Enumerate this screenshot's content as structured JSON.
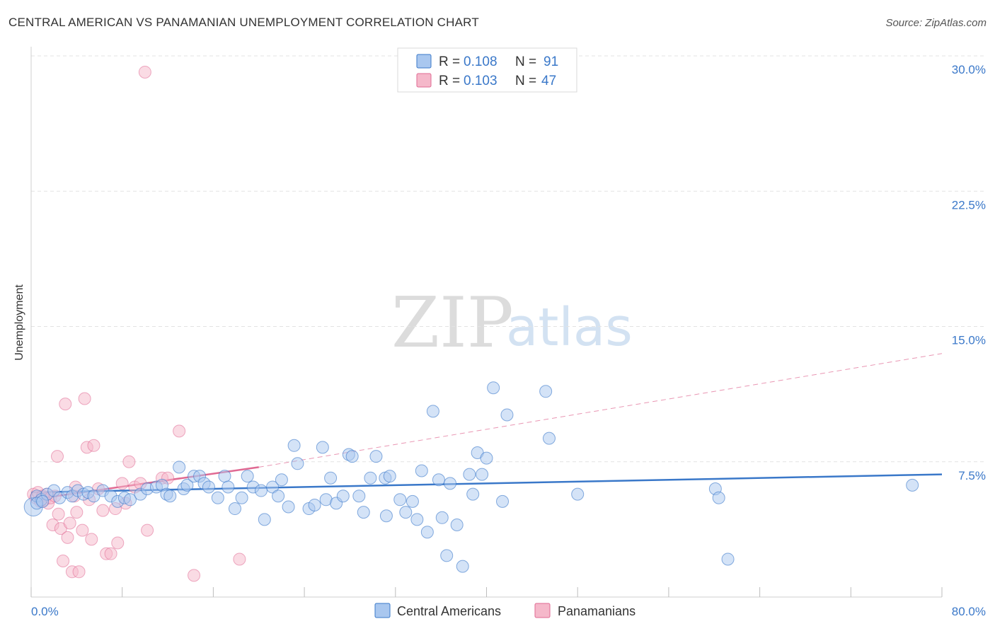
{
  "title": "CENTRAL AMERICAN VS PANAMANIAN UNEMPLOYMENT CORRELATION CHART",
  "source": "Source: ZipAtlas.com",
  "colors": {
    "blue": "#3a78c9",
    "blue_fill": "#a9c7ef",
    "pink": "#e06a93",
    "pink_fill": "#f5b8ca",
    "grid": "#e3e3e3"
  },
  "legend": {
    "r_label": "R =",
    "n_label": "N =",
    "series": [
      {
        "r": "0.108",
        "n": "91"
      },
      {
        "r": "0.103",
        "n": "47"
      }
    ]
  },
  "watermark": {
    "part1": "ZIP",
    "part2": "atlas"
  },
  "chart_data": {
    "type": "scatter",
    "title": "CENTRAL AMERICAN VS PANAMANIAN UNEMPLOYMENT CORRELATION CHART",
    "xlabel": "",
    "ylabel": "Unemployment",
    "xlim": [
      0,
      80
    ],
    "ylim": [
      0,
      30
    ],
    "x_tick_labels": [
      "0.0%",
      "80.0%"
    ],
    "y_ticks": [
      7.5,
      15.0,
      22.5,
      30.0
    ],
    "y_tick_labels": [
      "7.5%",
      "15.0%",
      "22.5%",
      "30.0%"
    ],
    "grid": true,
    "legend_position": "top-center",
    "series": [
      {
        "name": "Central Americans",
        "r": 0.108,
        "n": 91,
        "trend": {
          "x0": 0,
          "y0": 5.8,
          "x1": 80,
          "y1": 6.8,
          "style": "solid"
        },
        "points": [
          [
            0.2,
            5.0
          ],
          [
            0.5,
            5.6
          ],
          [
            0.9,
            5.4
          ],
          [
            1.4,
            5.7
          ],
          [
            2.0,
            5.9
          ],
          [
            2.5,
            5.5
          ],
          [
            3.2,
            5.8
          ],
          [
            3.6,
            5.6
          ],
          [
            4.1,
            5.9
          ],
          [
            4.6,
            5.7
          ],
          [
            5.0,
            5.8
          ],
          [
            5.5,
            5.6
          ],
          [
            6.3,
            5.9
          ],
          [
            7.0,
            5.6
          ],
          [
            7.6,
            5.3
          ],
          [
            8.2,
            5.5
          ],
          [
            8.7,
            5.4
          ],
          [
            9.6,
            5.7
          ],
          [
            10.2,
            6.0
          ],
          [
            11.0,
            6.1
          ],
          [
            11.5,
            6.2
          ],
          [
            11.9,
            5.7
          ],
          [
            12.2,
            5.6
          ],
          [
            13.0,
            7.2
          ],
          [
            13.4,
            6.0
          ],
          [
            13.7,
            6.2
          ],
          [
            14.3,
            6.7
          ],
          [
            14.8,
            6.7
          ],
          [
            15.2,
            6.3
          ],
          [
            15.6,
            6.1
          ],
          [
            16.4,
            5.5
          ],
          [
            17.0,
            6.7
          ],
          [
            17.3,
            6.1
          ],
          [
            17.9,
            4.9
          ],
          [
            18.5,
            5.5
          ],
          [
            19.0,
            6.7
          ],
          [
            19.5,
            6.1
          ],
          [
            20.2,
            5.9
          ],
          [
            20.5,
            4.3
          ],
          [
            21.2,
            6.1
          ],
          [
            21.7,
            5.6
          ],
          [
            22.0,
            6.5
          ],
          [
            22.6,
            5.0
          ],
          [
            23.1,
            8.4
          ],
          [
            23.4,
            7.4
          ],
          [
            24.4,
            4.9
          ],
          [
            24.9,
            5.1
          ],
          [
            25.6,
            8.3
          ],
          [
            25.9,
            5.4
          ],
          [
            26.3,
            6.6
          ],
          [
            26.8,
            5.2
          ],
          [
            27.4,
            5.6
          ],
          [
            27.9,
            7.9
          ],
          [
            28.2,
            7.8
          ],
          [
            28.8,
            5.6
          ],
          [
            29.2,
            4.7
          ],
          [
            29.8,
            6.6
          ],
          [
            30.3,
            7.8
          ],
          [
            31.1,
            6.6
          ],
          [
            31.5,
            6.7
          ],
          [
            31.2,
            4.5
          ],
          [
            32.4,
            5.4
          ],
          [
            32.9,
            4.7
          ],
          [
            33.5,
            5.3
          ],
          [
            33.9,
            4.3
          ],
          [
            34.3,
            7.0
          ],
          [
            34.8,
            3.6
          ],
          [
            35.3,
            10.3
          ],
          [
            35.8,
            6.5
          ],
          [
            36.1,
            4.4
          ],
          [
            36.5,
            2.3
          ],
          [
            36.8,
            6.3
          ],
          [
            37.4,
            4.0
          ],
          [
            37.9,
            1.7
          ],
          [
            38.5,
            6.8
          ],
          [
            38.8,
            5.7
          ],
          [
            39.2,
            8.0
          ],
          [
            39.6,
            6.8
          ],
          [
            40.0,
            7.7
          ],
          [
            40.6,
            11.6
          ],
          [
            41.4,
            5.3
          ],
          [
            41.8,
            10.1
          ],
          [
            45.2,
            11.4
          ],
          [
            45.5,
            8.8
          ],
          [
            48.0,
            5.7
          ],
          [
            60.1,
            6.0
          ],
          [
            60.4,
            5.5
          ],
          [
            61.2,
            2.1
          ],
          [
            77.4,
            6.2
          ],
          [
            0.5,
            5.2
          ],
          [
            1.0,
            5.3
          ]
        ]
      },
      {
        "name": "Panamanians",
        "r": 0.103,
        "n": 47,
        "trend": {
          "x0": 0,
          "y0": 5.4,
          "x1": 20,
          "y1": 7.2,
          "style": "solid"
        },
        "trend_extension": {
          "x0": 20,
          "y0": 7.2,
          "x1": 80,
          "y1": 13.5,
          "style": "dashed"
        },
        "points": [
          [
            0.2,
            5.7
          ],
          [
            0.4,
            5.5
          ],
          [
            0.6,
            5.8
          ],
          [
            0.8,
            5.3
          ],
          [
            1.0,
            5.6
          ],
          [
            1.2,
            5.4
          ],
          [
            1.4,
            5.7
          ],
          [
            1.5,
            5.2
          ],
          [
            1.7,
            5.5
          ],
          [
            1.9,
            4.0
          ],
          [
            2.1,
            5.6
          ],
          [
            2.3,
            7.8
          ],
          [
            2.4,
            4.6
          ],
          [
            2.6,
            3.8
          ],
          [
            2.8,
            2.0
          ],
          [
            3.0,
            10.7
          ],
          [
            3.2,
            3.3
          ],
          [
            3.4,
            4.1
          ],
          [
            3.6,
            1.4
          ],
          [
            3.8,
            5.6
          ],
          [
            3.9,
            6.1
          ],
          [
            4.0,
            4.7
          ],
          [
            4.2,
            1.4
          ],
          [
            4.5,
            3.7
          ],
          [
            4.7,
            11.0
          ],
          [
            4.9,
            8.3
          ],
          [
            5.1,
            5.4
          ],
          [
            5.3,
            3.2
          ],
          [
            5.5,
            8.4
          ],
          [
            5.9,
            6.0
          ],
          [
            6.3,
            4.8
          ],
          [
            6.6,
            2.4
          ],
          [
            7.0,
            2.4
          ],
          [
            7.4,
            4.9
          ],
          [
            7.6,
            3.0
          ],
          [
            8.0,
            6.3
          ],
          [
            8.3,
            5.2
          ],
          [
            8.6,
            7.5
          ],
          [
            9.1,
            6.1
          ],
          [
            9.6,
            6.3
          ],
          [
            10.2,
            3.7
          ],
          [
            10.0,
            29.1
          ],
          [
            11.5,
            6.6
          ],
          [
            12.0,
            6.6
          ],
          [
            13.0,
            9.2
          ],
          [
            14.3,
            1.2
          ],
          [
            18.3,
            2.1
          ]
        ]
      }
    ]
  }
}
